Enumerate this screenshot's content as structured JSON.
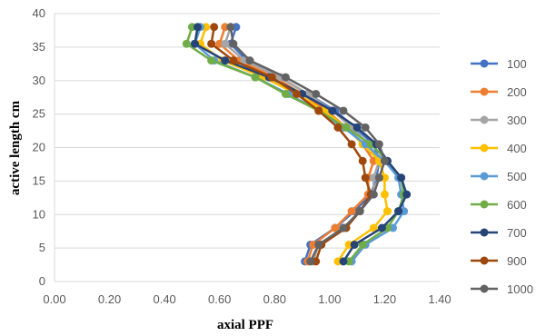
{
  "chart_data": {
    "type": "scatter",
    "xlabel": "axial PPF",
    "ylabel": "active length cm",
    "xlim": [
      0,
      1.4
    ],
    "ylim": [
      0,
      40
    ],
    "xticks": [
      "0.00",
      "0.20",
      "0.40",
      "0.60",
      "0.80",
      "1.00",
      "1.20",
      "1.40"
    ],
    "yticks": [
      "0",
      "5",
      "10",
      "15",
      "20",
      "25",
      "30",
      "35",
      "40"
    ],
    "grid": "horizontal",
    "legend_position": "right",
    "y": [
      38,
      35.5,
      33,
      30.5,
      28,
      25.5,
      23,
      20.5,
      18,
      15.5,
      13,
      10.5,
      8,
      5.5,
      3
    ],
    "series": [
      {
        "name": "100",
        "color": "#4472C4",
        "x": [
          0.66,
          0.64,
          0.7,
          0.82,
          0.92,
          1.02,
          1.09,
          1.16,
          1.18,
          1.17,
          1.15,
          1.09,
          1.02,
          0.93,
          0.91
        ]
      },
      {
        "name": "200",
        "color": "#ED7D31",
        "x": [
          0.62,
          0.6,
          0.67,
          0.8,
          0.9,
          0.99,
          1.06,
          1.12,
          1.16,
          1.14,
          1.14,
          1.08,
          1.02,
          0.94,
          0.92
        ]
      },
      {
        "name": "300",
        "color": "#A5A5A5",
        "x": [
          0.64,
          0.62,
          0.69,
          0.82,
          0.92,
          1.01,
          1.08,
          1.14,
          1.18,
          1.16,
          1.16,
          1.11,
          1.05,
          0.96,
          0.94
        ]
      },
      {
        "name": "400",
        "color": "#FFC000",
        "x": [
          0.55,
          0.53,
          0.61,
          0.76,
          0.88,
          0.98,
          1.06,
          1.12,
          1.18,
          1.2,
          1.2,
          1.21,
          1.16,
          1.07,
          1.03
        ]
      },
      {
        "name": "500",
        "color": "#5B9BD5",
        "x": [
          0.53,
          0.51,
          0.58,
          0.73,
          0.85,
          0.96,
          1.05,
          1.13,
          1.2,
          1.25,
          1.26,
          1.27,
          1.23,
          1.13,
          1.08
        ]
      },
      {
        "name": "600",
        "color": "#70AD47",
        "x": [
          0.5,
          0.48,
          0.57,
          0.73,
          0.84,
          0.96,
          1.06,
          1.15,
          1.21,
          1.26,
          1.27,
          1.25,
          1.21,
          1.12,
          1.07
        ]
      },
      {
        "name": "700",
        "color": "#264478",
        "x": [
          0.52,
          0.51,
          0.62,
          0.78,
          0.9,
          1.01,
          1.1,
          1.17,
          1.21,
          1.26,
          1.28,
          1.25,
          1.19,
          1.09,
          1.05
        ]
      },
      {
        "name": "900",
        "color": "#9E480E",
        "x": [
          0.58,
          0.57,
          0.65,
          0.79,
          0.88,
          0.96,
          1.03,
          1.08,
          1.12,
          1.13,
          1.15,
          1.11,
          1.06,
          0.97,
          0.95
        ]
      },
      {
        "name": "1000",
        "color": "#636363",
        "x": [
          0.64,
          0.65,
          0.71,
          0.84,
          0.95,
          1.05,
          1.13,
          1.18,
          1.2,
          1.18,
          1.16,
          1.11,
          1.05,
          0.96,
          0.93
        ]
      }
    ]
  }
}
